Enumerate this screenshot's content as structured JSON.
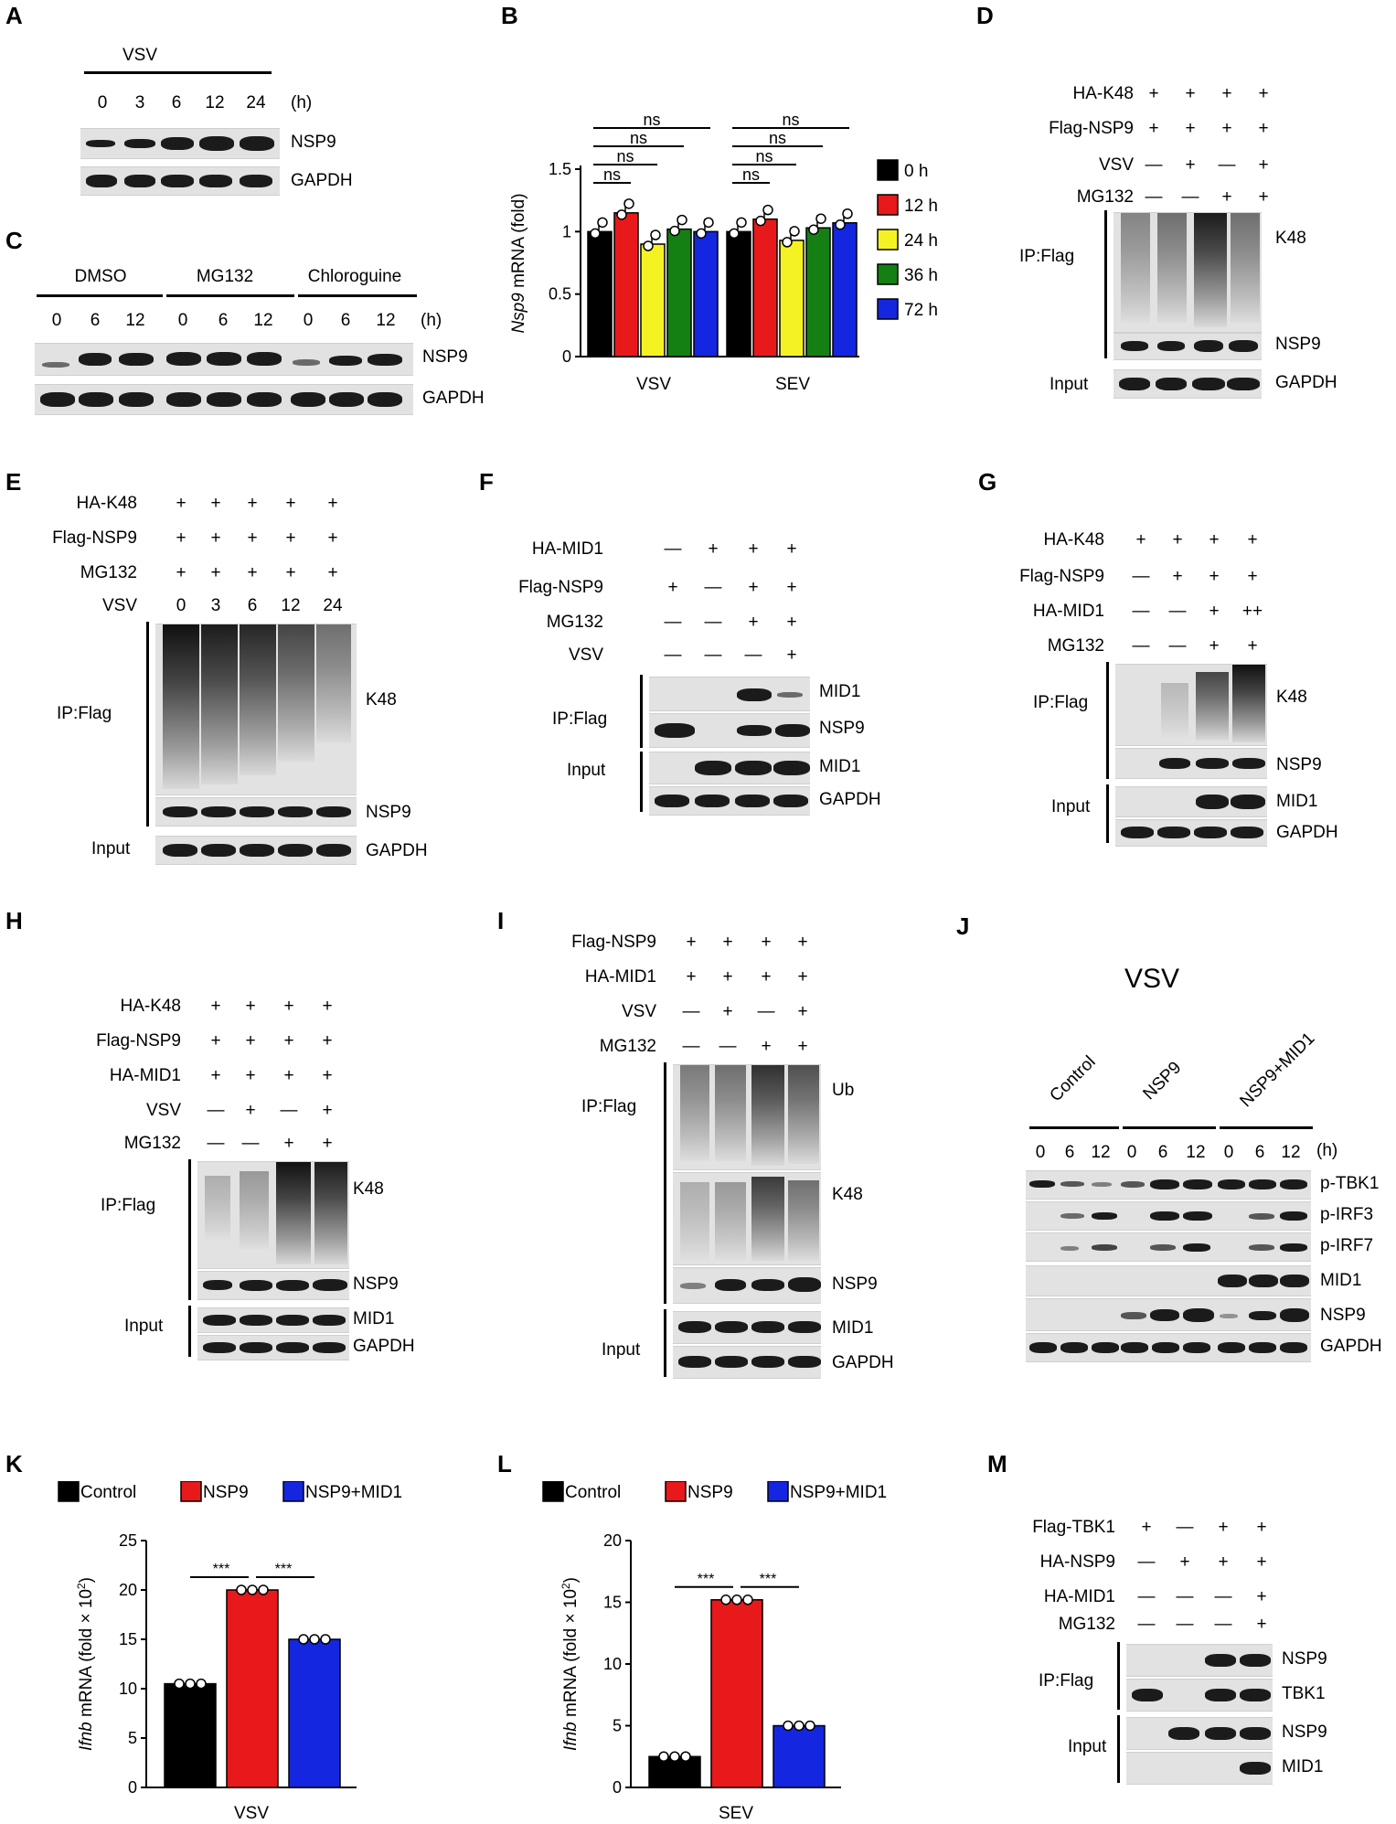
{
  "panels": {
    "A": {
      "label": "A",
      "treatment": "VSV",
      "times": [
        "0",
        "3",
        "6",
        "12",
        "24"
      ],
      "unit": "(h)",
      "rows": [
        "NSP9",
        "GAPDH"
      ]
    },
    "B": {
      "label": "B"
    },
    "C": {
      "label": "C",
      "groups": [
        "DMSO",
        "MG132",
        "Chloroguine"
      ],
      "times": [
        "0",
        "6",
        "12",
        "0",
        "6",
        "12",
        "0",
        "6",
        "12"
      ],
      "unit": "(h)",
      "rows": [
        "NSP9",
        "GAPDH"
      ]
    },
    "D": {
      "label": "D",
      "conditions": [
        "HA-K48",
        "Flag-NSP9",
        "VSV",
        "MG132"
      ],
      "ip": "IP:Flag",
      "input": "Input",
      "rows": [
        "K48",
        "NSP9",
        "GAPDH"
      ]
    },
    "E": {
      "label": "E",
      "conditions": [
        "HA-K48",
        "Flag-NSP9",
        "MG132",
        "VSV"
      ],
      "vsv_times": [
        "0",
        "3",
        "6",
        "12",
        "24"
      ],
      "ip": "IP:Flag",
      "input": "Input",
      "rows": [
        "K48",
        "NSP9",
        "GAPDH"
      ]
    },
    "F": {
      "label": "F",
      "conditions": [
        "HA-MID1",
        "Flag-NSP9",
        "MG132",
        "VSV"
      ],
      "ip": "IP:Flag",
      "input": "Input",
      "rows": [
        "MID1",
        "NSP9",
        "MID1",
        "GAPDH"
      ]
    },
    "G": {
      "label": "G",
      "conditions": [
        "HA-K48",
        "Flag-NSP9",
        "HA-MID1",
        "MG132"
      ],
      "ip": "IP:Flag",
      "input": "Input",
      "rows": [
        "K48",
        "NSP9",
        "MID1",
        "GAPDH"
      ]
    },
    "H": {
      "label": "H",
      "conditions": [
        "HA-K48",
        "Flag-NSP9",
        "HA-MID1",
        "VSV",
        "MG132"
      ],
      "ip": "IP:Flag",
      "input": "Input",
      "rows": [
        "K48",
        "NSP9",
        "MID1",
        "GAPDH"
      ]
    },
    "I": {
      "label": "I",
      "conditions": [
        "Flag-NSP9",
        "HA-MID1",
        "VSV",
        "MG132"
      ],
      "ip": "IP:Flag",
      "input": "Input",
      "rows": [
        "Ub",
        "K48",
        "NSP9",
        "MID1",
        "GAPDH"
      ]
    },
    "J": {
      "label": "J",
      "treatment": "VSV",
      "groups": [
        "Control",
        "NSP9",
        "NSP9+MID1"
      ],
      "times": [
        "0",
        "6",
        "12",
        "0",
        "6",
        "12",
        "0",
        "6",
        "12"
      ],
      "unit": "(h)",
      "rows": [
        "p-TBK1",
        "p-IRF3",
        "p-IRF7",
        "MID1",
        "NSP9",
        "GAPDH"
      ]
    },
    "K": {
      "label": "K"
    },
    "L": {
      "label": "L"
    },
    "M": {
      "label": "M",
      "conditions": [
        "Flag-TBK1",
        "HA-NSP9",
        "HA-MID1",
        "MG132"
      ],
      "ip": "IP:Flag",
      "input": "Input",
      "rows": [
        "NSP9",
        "TBK1",
        "NSP9",
        "MID1"
      ]
    }
  },
  "symbols": {
    "plus": "+",
    "minus": "—",
    "double_plus": "++"
  },
  "chart_data": [
    {
      "panel": "B",
      "type": "bar",
      "ylabel_italic": "Nsp9",
      "ylabel": " mRNA (fold)",
      "ylim": [
        0,
        1.5
      ],
      "yticks": [
        "0",
        "0.5",
        "1",
        "1.5"
      ],
      "categories": [
        "VSV",
        "SEV"
      ],
      "legend": [
        "0 h",
        "12 h",
        "24 h",
        "36 h",
        "72 h"
      ],
      "colors": [
        "#000000",
        "#e8191b",
        "#f5f224",
        "#148014",
        "#1426e0"
      ],
      "series": [
        {
          "name": "0 h",
          "values": [
            1.0,
            1.0
          ]
        },
        {
          "name": "12 h",
          "values": [
            1.15,
            1.1
          ]
        },
        {
          "name": "24 h",
          "values": [
            0.9,
            0.93
          ]
        },
        {
          "name": "36 h",
          "values": [
            1.02,
            1.03
          ]
        },
        {
          "name": "72 h",
          "values": [
            1.0,
            1.07
          ]
        }
      ],
      "significance": [
        "ns",
        "ns",
        "ns",
        "ns",
        "ns",
        "ns",
        "ns",
        "ns"
      ]
    },
    {
      "panel": "K",
      "type": "bar",
      "ylabel_italic": "Ifnb",
      "ylabel": " mRNA (fold × 10",
      "ylabel_exp": "2",
      "ylabel_end": ")",
      "ylim": [
        0,
        25
      ],
      "yticks": [
        "0",
        "5",
        "10",
        "15",
        "20",
        "25"
      ],
      "xlabel": "VSV",
      "legend": [
        "Control",
        "NSP9",
        "NSP9+MID1"
      ],
      "colors": [
        "#000000",
        "#e8191b",
        "#1426e0"
      ],
      "values": [
        10.5,
        20.0,
        15.0
      ],
      "significance": [
        "***",
        "***"
      ]
    },
    {
      "panel": "L",
      "type": "bar",
      "ylabel_italic": "Ifnb",
      "ylabel": " mRNA (fold × 10",
      "ylabel_exp": "2",
      "ylabel_end": ")",
      "ylim": [
        0,
        20
      ],
      "yticks": [
        "0",
        "5",
        "10",
        "15",
        "20"
      ],
      "xlabel": "SEV",
      "legend": [
        "Control",
        "NSP9",
        "NSP9+MID1"
      ],
      "colors": [
        "#000000",
        "#e8191b",
        "#1426e0"
      ],
      "values": [
        2.5,
        15.2,
        5.0
      ],
      "significance": [
        "***",
        "***"
      ]
    }
  ]
}
